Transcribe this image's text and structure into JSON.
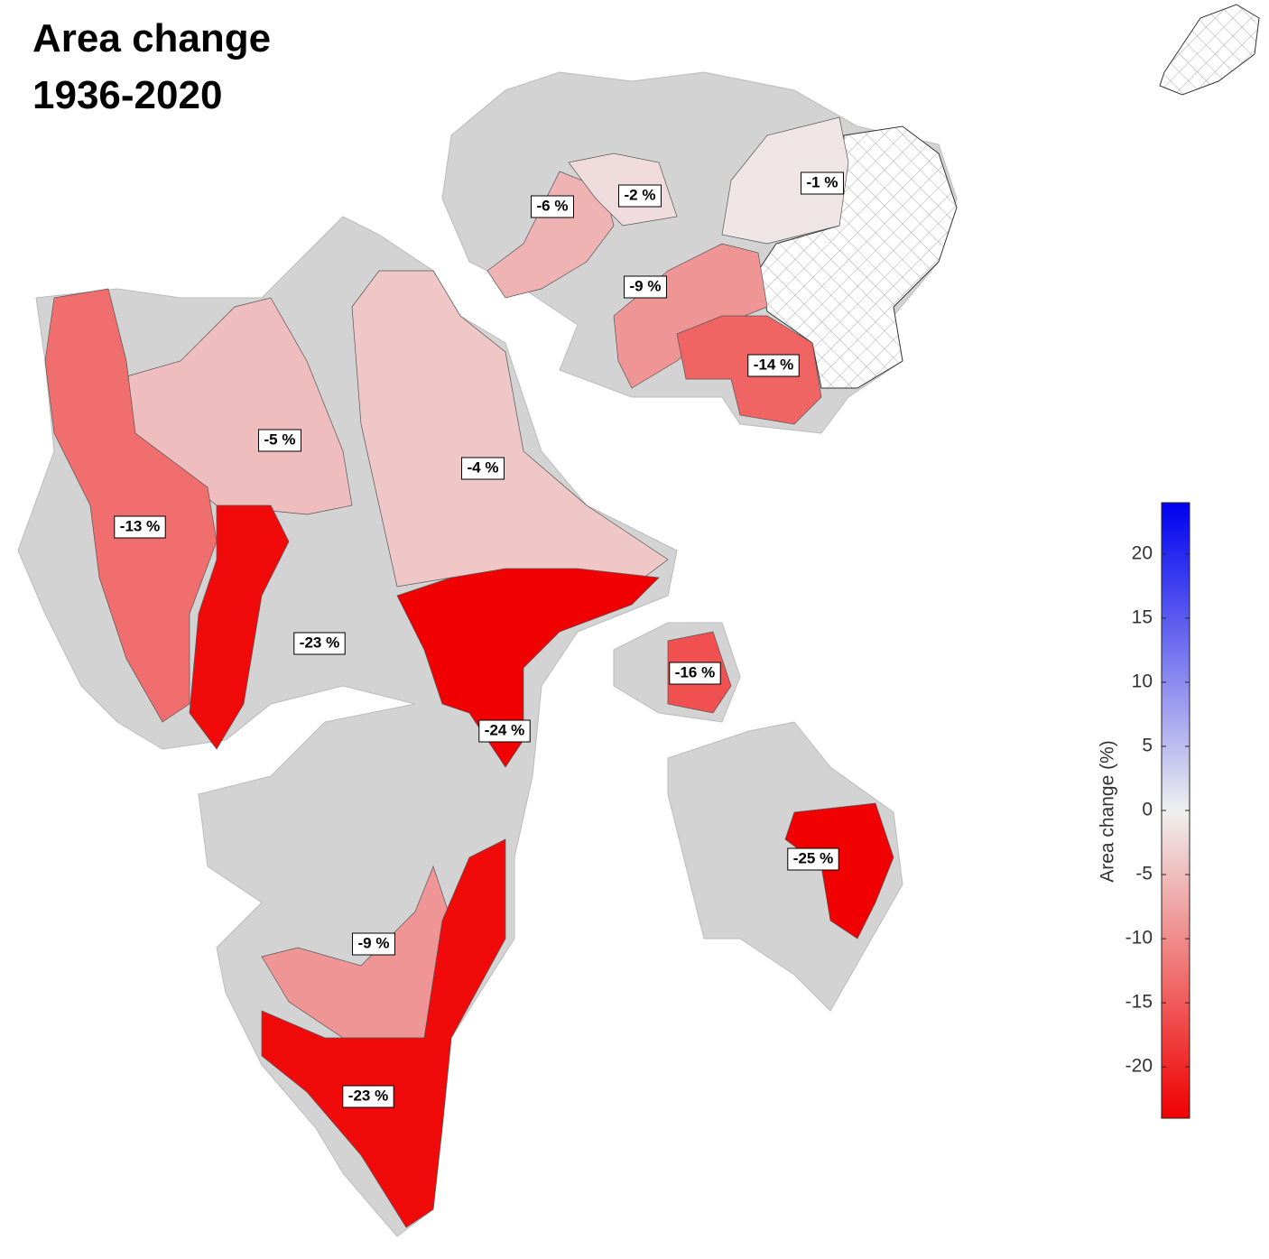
{
  "title": [
    "Area change",
    "1936-2020"
  ],
  "regions": [
    {
      "label": "-6 %",
      "value": -6
    },
    {
      "label": "-2 %",
      "value": -2
    },
    {
      "label": "-1 %",
      "value": -1
    },
    {
      "label": "-9 %",
      "value": -9
    },
    {
      "label": "-14 %",
      "value": -14
    },
    {
      "label": "-5 %",
      "value": -5
    },
    {
      "label": "-4 %",
      "value": -4
    },
    {
      "label": "-13 %",
      "value": -13
    },
    {
      "label": "-23 %",
      "value": -23
    },
    {
      "label": "-16 %",
      "value": -16
    },
    {
      "label": "-24 %",
      "value": -24
    },
    {
      "label": "-25 %",
      "value": -25
    },
    {
      "label": "-9 %",
      "value": -9
    },
    {
      "label": "-23 %",
      "value": -23
    }
  ],
  "colorbar": {
    "label": "Area change (%)",
    "lim": [
      -24,
      24
    ],
    "ticks": [
      -20,
      -15,
      -10,
      -5,
      0,
      5,
      10,
      15,
      20
    ],
    "colors": {
      "negative": "#f00000",
      "zero": "#efefef",
      "positive": "#0000f0"
    }
  }
}
